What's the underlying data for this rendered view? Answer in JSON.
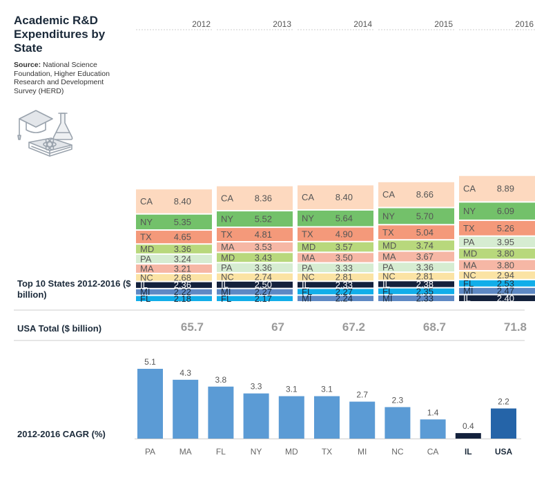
{
  "title": "Academic R&D Expenditures by State",
  "source_label": "Source:",
  "source_text": "National Science Foundation, Higher Education Research and Development Survey (HERD)",
  "top10_label": "Top 10 States 2012-2016 ($ billion)",
  "usa_label": "USA Total ($ billion)",
  "cagr_label": "2012-2016 CAGR (%)",
  "icon_name": "graduation-education-icon",
  "colors": {
    "CA": "#fdd9bf",
    "NY": "#73c16a",
    "TX": "#f4997a",
    "MD": "#b8d87c",
    "PA": "#d6ecd1",
    "MA": "#f6b7a5",
    "NC": "#fbe3a4",
    "IL": "#13213c",
    "MI": "#5e89c4",
    "FL": "#12aee9",
    "cagr_bar": "#5b9bd5",
    "cagr_il": "#13213c",
    "cagr_usa": "#2564a8"
  },
  "chart_data": [
    {
      "type": "stacked-bar",
      "title": "Top 10 States 2012-2016 ($ billion)",
      "categories": [
        "2012",
        "2013",
        "2014",
        "2015",
        "2016"
      ],
      "stacks": [
        [
          {
            "state": "CA",
            "value": "8.40"
          },
          {
            "state": "NY",
            "value": "5.35"
          },
          {
            "state": "TX",
            "value": "4.65"
          },
          {
            "state": "MD",
            "value": "3.36"
          },
          {
            "state": "PA",
            "value": "3.24"
          },
          {
            "state": "MA",
            "value": "3.21"
          },
          {
            "state": "NC",
            "value": "2.68"
          },
          {
            "state": "IL",
            "value": "2.36"
          },
          {
            "state": "MI",
            "value": "2.22"
          },
          {
            "state": "FL",
            "value": "2.18"
          }
        ],
        [
          {
            "state": "CA",
            "value": "8.36"
          },
          {
            "state": "NY",
            "value": "5.52"
          },
          {
            "state": "TX",
            "value": "4.81"
          },
          {
            "state": "MA",
            "value": "3.53"
          },
          {
            "state": "MD",
            "value": "3.43"
          },
          {
            "state": "PA",
            "value": "3.36"
          },
          {
            "state": "NC",
            "value": "2.74"
          },
          {
            "state": "IL",
            "value": "2.50"
          },
          {
            "state": "MI",
            "value": "2.27"
          },
          {
            "state": "FL",
            "value": "2.17"
          }
        ],
        [
          {
            "state": "CA",
            "value": "8.40"
          },
          {
            "state": "NY",
            "value": "5.64"
          },
          {
            "state": "TX",
            "value": "4.90"
          },
          {
            "state": "MD",
            "value": "3.57"
          },
          {
            "state": "MA",
            "value": "3.50"
          },
          {
            "state": "PA",
            "value": "3.33"
          },
          {
            "state": "NC",
            "value": "2.81"
          },
          {
            "state": "IL",
            "value": "2.33"
          },
          {
            "state": "FL",
            "value": "2.27"
          },
          {
            "state": "MI",
            "value": "2.24"
          }
        ],
        [
          {
            "state": "CA",
            "value": "8.66"
          },
          {
            "state": "NY",
            "value": "5.70"
          },
          {
            "state": "TX",
            "value": "5.04"
          },
          {
            "state": "MD",
            "value": "3.74"
          },
          {
            "state": "MA",
            "value": "3.67"
          },
          {
            "state": "PA",
            "value": "3.36"
          },
          {
            "state": "NC",
            "value": "2.81"
          },
          {
            "state": "IL",
            "value": "2.38"
          },
          {
            "state": "FL",
            "value": "2.35"
          },
          {
            "state": "MI",
            "value": "2.33"
          }
        ],
        [
          {
            "state": "CA",
            "value": "8.89"
          },
          {
            "state": "NY",
            "value": "6.09"
          },
          {
            "state": "TX",
            "value": "5.26"
          },
          {
            "state": "PA",
            "value": "3.95"
          },
          {
            "state": "MD",
            "value": "3.80"
          },
          {
            "state": "MA",
            "value": "3.80"
          },
          {
            "state": "NC",
            "value": "2.94"
          },
          {
            "state": "FL",
            "value": "2.53"
          },
          {
            "state": "MI",
            "value": "2.47"
          },
          {
            "state": "IL",
            "value": "2.40"
          }
        ]
      ]
    },
    {
      "type": "table",
      "title": "USA Total ($ billion)",
      "categories": [
        "2012",
        "2013",
        "2014",
        "2015",
        "2016"
      ],
      "values": [
        "65.7",
        "67",
        "67.2",
        "68.7",
        "71.8"
      ]
    },
    {
      "type": "bar",
      "title": "2012-2016 CAGR (%)",
      "categories": [
        "PA",
        "MA",
        "FL",
        "NY",
        "MD",
        "TX",
        "MI",
        "NC",
        "CA",
        "IL",
        "USA"
      ],
      "values": [
        "5.1",
        "4.3",
        "3.8",
        "3.3",
        "3.1",
        "3.1",
        "2.7",
        "2.3",
        "1.4",
        "0.4",
        "2.2"
      ],
      "bold_categories": [
        "IL",
        "USA"
      ]
    }
  ]
}
